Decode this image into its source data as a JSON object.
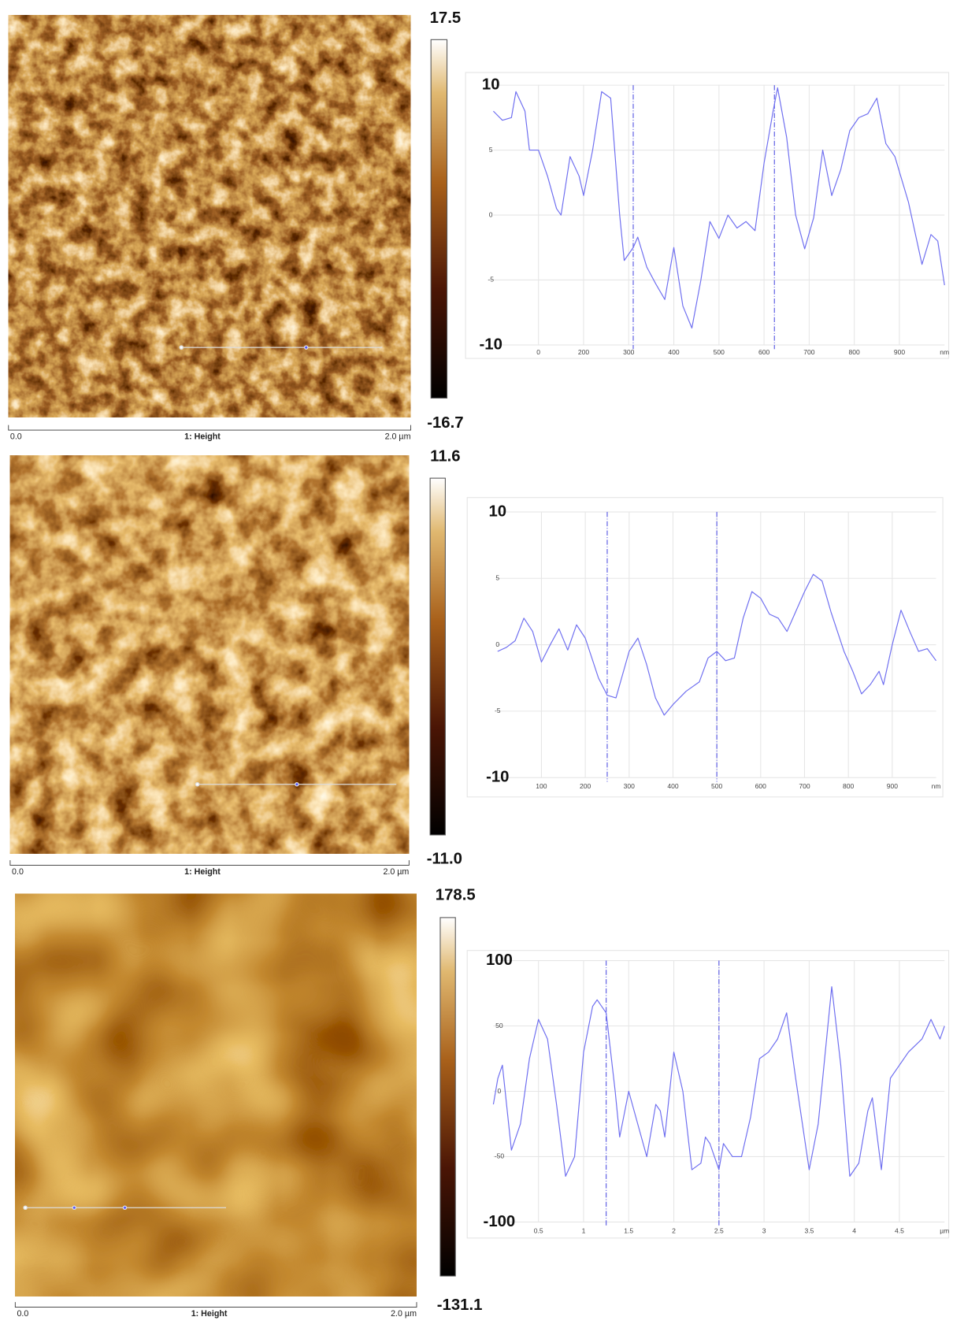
{
  "panels": [
    {
      "image": {
        "scale_start": "0.0",
        "channel": "1: Height",
        "scale_end": "2.0 µm"
      },
      "colorbar": {
        "max": "17.5",
        "min": "-16.7"
      }
    },
    {
      "image": {
        "scale_start": "0.0",
        "channel": "1: Height",
        "scale_end": "2.0 µm"
      },
      "colorbar": {
        "max": "11.6",
        "min": "-11.0"
      }
    },
    {
      "image": {
        "scale_start": "0.0",
        "channel": "1: Height",
        "scale_end": "2.0 µm"
      },
      "colorbar": {
        "max": "178.5",
        "min": "-131.1"
      }
    }
  ],
  "chart_data": [
    {
      "type": "line",
      "x_label": "nm",
      "x": [
        0,
        20,
        40,
        50,
        70,
        80,
        100,
        120,
        140,
        150,
        170,
        190,
        200,
        220,
        240,
        260,
        280,
        290,
        310,
        320,
        340,
        360,
        380,
        400,
        420,
        440,
        460,
        480,
        500,
        520,
        540,
        560,
        580,
        600,
        620,
        630,
        650,
        670,
        690,
        710,
        730,
        750,
        770,
        790,
        810,
        830,
        850,
        870,
        890,
        920,
        950,
        970,
        985,
        1000
      ],
      "series": [
        {
          "color": "#6e6ef0",
          "values": [
            8,
            7.3,
            7.5,
            9.5,
            8,
            5,
            5,
            3,
            0.5,
            0,
            4.5,
            3,
            1.5,
            5,
            9.5,
            9,
            0,
            -3.5,
            -2.5,
            -1.7,
            -4,
            -5.3,
            -6.5,
            -2.5,
            -7,
            -8.7,
            -5,
            -0.5,
            -1.8,
            0,
            -1,
            -0.5,
            -1.2,
            4,
            8,
            9.8,
            6,
            0,
            -2.6,
            -0.2,
            5,
            1.5,
            3.5,
            6.5,
            7.5,
            7.8,
            9,
            5.5,
            4.5,
            1,
            -3.8,
            -1.5,
            -2,
            -5.4
          ]
        }
      ],
      "cursors": [
        310,
        623
      ],
      "xlim": [
        0,
        1000
      ],
      "ylim": [
        -10,
        10
      ],
      "xticks": [
        {
          "value": 100,
          "label": "0"
        },
        200,
        300,
        400,
        500,
        600,
        700,
        800,
        900
      ],
      "yticks": [
        -10,
        -5,
        0,
        5,
        10
      ],
      "grid": true
    },
    {
      "type": "line",
      "x_label": "nm",
      "x": [
        0,
        20,
        40,
        60,
        80,
        100,
        120,
        140,
        160,
        180,
        200,
        230,
        250,
        270,
        300,
        320,
        340,
        360,
        380,
        400,
        430,
        460,
        480,
        500,
        520,
        540,
        560,
        580,
        600,
        620,
        640,
        660,
        680,
        700,
        720,
        740,
        760,
        790,
        810,
        830,
        850,
        870,
        880,
        900,
        920,
        940,
        960,
        980,
        1000
      ],
      "series": [
        {
          "color": "#6e6ef0",
          "values": [
            -0.5,
            -0.2,
            0.3,
            2,
            1,
            -1.3,
            0,
            1.2,
            -0.4,
            1.5,
            0.5,
            -2.5,
            -3.8,
            -4,
            -0.5,
            0.5,
            -1.5,
            -4,
            -5.3,
            -4.5,
            -3.5,
            -2.8,
            -1,
            -0.5,
            -1.2,
            -1,
            2,
            4,
            3.5,
            2.3,
            2,
            1,
            2.5,
            4,
            5.3,
            4.8,
            2.5,
            -0.5,
            -2,
            -3.7,
            -3,
            -2,
            -3,
            0,
            2.6,
            1,
            -0.5,
            -0.3,
            -1.2
          ]
        }
      ],
      "cursors": [
        250,
        500
      ],
      "xlim": [
        0,
        1000
      ],
      "ylim": [
        -10,
        10
      ],
      "xticks": [
        100,
        200,
        300,
        400,
        500,
        600,
        700,
        800,
        900
      ],
      "yticks": [
        -10,
        -5,
        0,
        5,
        10
      ],
      "grid": true
    },
    {
      "type": "line",
      "x_label": "µm",
      "x": [
        0,
        0.05,
        0.1,
        0.2,
        0.3,
        0.4,
        0.5,
        0.6,
        0.7,
        0.8,
        0.9,
        1,
        1.1,
        1.15,
        1.25,
        1.35,
        1.4,
        1.5,
        1.6,
        1.7,
        1.8,
        1.85,
        1.9,
        2,
        2.1,
        2.2,
        2.3,
        2.35,
        2.4,
        2.5,
        2.55,
        2.65,
        2.75,
        2.85,
        2.95,
        3.05,
        3.15,
        3.25,
        3.35,
        3.5,
        3.6,
        3.75,
        3.85,
        3.95,
        4.05,
        4.15,
        4.2,
        4.3,
        4.4,
        4.5,
        4.6,
        4.75,
        4.85,
        4.95,
        5
      ],
      "series": [
        {
          "color": "#6e6ef0",
          "values": [
            -10,
            10,
            20,
            -45,
            -25,
            25,
            55,
            40,
            -10,
            -65,
            -50,
            30,
            65,
            70,
            60,
            0,
            -35,
            0,
            -25,
            -50,
            -10,
            -15,
            -35,
            30,
            0,
            -60,
            -55,
            -35,
            -40,
            -60,
            -40,
            -50,
            -50,
            -20,
            25,
            30,
            40,
            60,
            10,
            -60,
            -25,
            80,
            20,
            -65,
            -55,
            -15,
            -5,
            -60,
            10,
            20,
            30,
            40,
            55,
            40,
            50
          ]
        }
      ],
      "cursors": [
        1.25,
        2.5
      ],
      "xlim": [
        0,
        5
      ],
      "ylim": [
        -100,
        100
      ],
      "xticks": [
        0.5,
        1,
        1.5,
        2,
        2.5,
        3,
        3.5,
        4,
        4.5
      ],
      "yticks": [
        -100,
        -50,
        0,
        50,
        100
      ],
      "grid": true
    }
  ]
}
